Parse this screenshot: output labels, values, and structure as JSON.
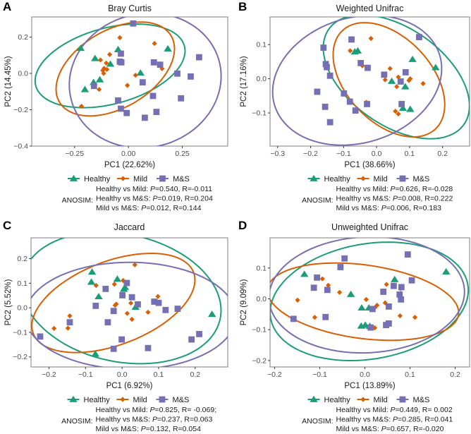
{
  "colors": {
    "Healthy": "#1b9e77",
    "Mild": "#d95f02",
    "M&S": "#7570b3"
  },
  "legend": [
    {
      "name": "Healthy",
      "shape": "triangle"
    },
    {
      "name": "Mild",
      "shape": "diamond"
    },
    {
      "name": "M&S",
      "shape": "square"
    }
  ],
  "anosim_label": "ANOSIM:",
  "chart_data": [
    {
      "panel": "A",
      "type": "scatter",
      "title": "Bray Curtis",
      "xlabel": "PC1 (22.62%)",
      "ylabel": "PC2 (14.45%)",
      "xlim": [
        -0.449,
        0.461
      ],
      "ylim": [
        -0.4,
        0.311
      ],
      "xticks": [
        -0.25,
        0,
        0.25
      ],
      "xtick_labels": [
        "-0.25",
        "0.00",
        "0.25"
      ],
      "yticks": [
        -0.4,
        -0.2,
        0,
        0.2
      ],
      "ytick_labels": [
        "-0.4",
        "-0.2",
        "0.0",
        "0.2"
      ],
      "ellipses": true,
      "series": [
        {
          "name": "Healthy",
          "points": [
            [
              -0.222,
              0.139
            ],
            [
              -0.155,
              0.083
            ],
            [
              -0.048,
              0.132
            ],
            [
              -0.084,
              0.052
            ],
            [
              0.056,
              0.003
            ],
            [
              -0.133,
              -0.034
            ],
            [
              -0.162,
              -0.049
            ],
            [
              -0.202,
              -0.088
            ],
            [
              0.183,
              0.136
            ]
          ]
        },
        {
          "name": "Mild",
          "points": [
            [
              -0.04,
              0.197
            ],
            [
              0.121,
              0.165
            ],
            [
              -0.087,
              0.104
            ],
            [
              -0.13,
              0.074
            ],
            [
              -0.103,
              0.057
            ],
            [
              -0.113,
              0.028
            ],
            [
              -0.1,
              0.022
            ],
            [
              -0.119,
              0.016
            ],
            [
              -0.115,
              0.0
            ],
            [
              0.033,
              -0.01
            ],
            [
              0.156,
              0.026
            ],
            [
              -0.005,
              -0.066
            ],
            [
              -0.136,
              -0.088
            ],
            [
              -0.218,
              -0.181
            ]
          ]
        },
        {
          "name": "M&S",
          "points": [
            [
              0.022,
              0.275
            ],
            [
              -0.035,
              0.109
            ],
            [
              -0.04,
              0.065
            ],
            [
              -0.033,
              0.061
            ],
            [
              0.118,
              0.061
            ],
            [
              0.147,
              0.048
            ],
            [
              0.328,
              0.089
            ],
            [
              0.227,
              -0.001
            ],
            [
              0.289,
              -0.017
            ],
            [
              0.066,
              -0.049
            ],
            [
              -0.16,
              -0.069
            ],
            [
              0.114,
              -0.124
            ],
            [
              0.244,
              -0.137
            ],
            [
              -0.048,
              -0.149
            ],
            [
              -0.035,
              -0.194
            ],
            [
              -0.008,
              -0.218
            ],
            [
              0.076,
              -0.244
            ],
            [
              0.13,
              -0.212
            ]
          ]
        }
      ],
      "anosim": [
        "Healthy vs Mild: P=0.540, R=-0.011",
        "Healthy vs M&S: P=0.019, R=0.204",
        "Mild vs M&S: P=0.012, R=0.144"
      ]
    },
    {
      "panel": "B",
      "type": "scatter",
      "title": "Weighted Unifrac",
      "xlabel": "PC1 (38.66%)",
      "ylabel": "PC2 (17.16%)",
      "xlim": [
        -0.323,
        0.282
      ],
      "ylim": [
        -0.197,
        0.181
      ],
      "xticks": [
        -0.3,
        -0.2,
        -0.1,
        0,
        0.1,
        0.2
      ],
      "xtick_labels": [
        "-0.3",
        "-0.2",
        "-0.1",
        "0.0",
        "0.1",
        "0.2"
      ],
      "yticks": [
        -0.1,
        0,
        0.1
      ],
      "ytick_labels": [
        "-0.1",
        "0.0",
        "0.1"
      ],
      "ellipses": true,
      "series": [
        {
          "name": "Healthy",
          "points": [
            [
              -0.066,
              0.079
            ],
            [
              -0.057,
              0.082
            ],
            [
              0.109,
              0.057
            ],
            [
              0.179,
              0.033
            ],
            [
              0.046,
              -0.007
            ],
            [
              0.087,
              -0.023
            ],
            [
              0.08,
              -0.086
            ],
            [
              0.102,
              -0.089
            ]
          ]
        },
        {
          "name": "Mild",
          "points": [
            [
              -0.017,
              0.118
            ],
            [
              -0.08,
              0.082
            ],
            [
              -0.043,
              0.038
            ],
            [
              0.041,
              0.03
            ],
            [
              0.066,
              0.005
            ],
            [
              0.026,
              -0.003
            ],
            [
              0.102,
              0.0
            ],
            [
              0.098,
              -0.005
            ],
            [
              0.141,
              -0.014
            ],
            [
              0.061,
              -0.023
            ],
            [
              -0.031,
              -0.069
            ],
            [
              0.057,
              -0.095
            ],
            [
              0.066,
              -0.103
            ]
          ]
        },
        {
          "name": "M&S",
          "points": [
            [
              -0.076,
              0.115
            ],
            [
              -0.161,
              0.091
            ],
            [
              0.129,
              0.122
            ],
            [
              -0.154,
              0.043
            ],
            [
              -0.151,
              0.034
            ],
            [
              -0.141,
              0.009
            ],
            [
              -0.048,
              0.046
            ],
            [
              -0.027,
              0.032
            ],
            [
              0.023,
              0.012
            ],
            [
              0.088,
              0.019
            ],
            [
              0.073,
              -0.008
            ],
            [
              -0.18,
              -0.038
            ],
            [
              -0.099,
              -0.043
            ],
            [
              -0.081,
              -0.067
            ],
            [
              -0.029,
              -0.074
            ],
            [
              -0.064,
              -0.093
            ],
            [
              -0.156,
              -0.082
            ],
            [
              -0.141,
              -0.127
            ],
            [
              0.076,
              -0.074
            ]
          ]
        }
      ],
      "anosim": [
        "Healthy vs Mild: P=0.626, R=-0.028",
        "Healthy vs M&S: P=0.008, R=0.222",
        "Mild vs M&S: P=0.006, R=0.183"
      ]
    },
    {
      "panel": "C",
      "type": "scatter",
      "title": "Jaccard",
      "xlabel": "PC1 (6.92%)",
      "ylabel": "PC2 (5.52%)",
      "xlim": [
        -0.249,
        0.289
      ],
      "ylim": [
        -0.241,
        0.285
      ],
      "xticks": [
        -0.2,
        -0.1,
        0,
        0.1,
        0.2
      ],
      "xtick_labels": [
        "-0.2",
        "-0.1",
        "0.0",
        "0.1",
        "0.2"
      ],
      "yticks": [
        -0.2,
        -0.1,
        0,
        0.1,
        0.2
      ],
      "ytick_labels": [
        "-0.2",
        "-0.1",
        "0.0",
        "0.1",
        "0.2"
      ],
      "ellipses": true,
      "series": [
        {
          "name": "Healthy",
          "points": [
            [
              -0.082,
              0.146
            ],
            [
              -0.084,
              0.105
            ],
            [
              -0.064,
              0.046
            ],
            [
              -0.013,
              0.117
            ],
            [
              0.008,
              0.084
            ],
            [
              0.005,
              0.076
            ],
            [
              0.037,
              0.003
            ],
            [
              0.246,
              -0.026
            ],
            [
              -0.073,
              -0.188
            ]
          ]
        },
        {
          "name": "Mild",
          "points": [
            [
              0.035,
              0.175
            ],
            [
              0.003,
              0.111
            ],
            [
              -0.021,
              0.096
            ],
            [
              -0.071,
              0.091
            ],
            [
              0.098,
              0.046
            ],
            [
              -0.016,
              0.015
            ],
            [
              -0.019,
              0.01
            ],
            [
              0.024,
              0.019
            ],
            [
              0.071,
              -0.018
            ],
            [
              0.014,
              -0.023
            ],
            [
              0.027,
              -0.047
            ],
            [
              -0.143,
              -0.033
            ],
            [
              -0.148,
              -0.083
            ],
            [
              -0.186,
              -0.084
            ]
          ]
        },
        {
          "name": "M&S",
          "points": [
            [
              0.013,
              0.101
            ],
            [
              -0.045,
              0.077
            ],
            [
              0.001,
              0.051
            ],
            [
              0.027,
              0.043
            ],
            [
              0.043,
              0.014
            ],
            [
              0.088,
              0.025
            ],
            [
              0.1,
              0.02
            ],
            [
              0.119,
              -0.009
            ],
            [
              0.152,
              -0.004
            ],
            [
              -0.072,
              0.008
            ],
            [
              -0.023,
              -0.013
            ],
            [
              -0.039,
              -0.059
            ],
            [
              -0.143,
              -0.059
            ],
            [
              -0.224,
              -0.117
            ],
            [
              -0.001,
              -0.129
            ],
            [
              -0.023,
              -0.167
            ],
            [
              0.071,
              -0.164
            ],
            [
              0.19,
              -0.129
            ],
            [
              0.211,
              -0.107
            ]
          ]
        }
      ],
      "anosim": [
        "Healthy vs Mild: P=0.825, R= -0.069;",
        "Healthy vs M&S: P=0.237, R=0.063",
        "Mild vs M&S: P=0.132, R=0.054"
      ]
    },
    {
      "panel": "D",
      "type": "scatter",
      "title": "Unweighted Unifrac",
      "xlabel": "PC1 (13.89%)",
      "ylabel": "PC2 (9.09%)",
      "xlim": [
        -0.21,
        0.232
      ],
      "ylim": [
        -0.221,
        0.198
      ],
      "xticks": [
        -0.2,
        -0.1,
        0,
        0.1,
        0.2
      ],
      "xtick_labels": [
        "-0.2",
        "-0.1",
        "0.0",
        "0.1",
        "0.2"
      ],
      "yticks": [
        -0.2,
        -0.1,
        0,
        0.1
      ],
      "ytick_labels": [
        "-0.2",
        "-0.1",
        "0.0",
        "0.1"
      ],
      "ellipses": true,
      "series": [
        {
          "name": "Healthy",
          "points": [
            [
              -0.134,
              0.08
            ],
            [
              -0.031,
              0.015
            ],
            [
              0.066,
              0.063
            ],
            [
              0.18,
              0.088
            ],
            [
              -0.007,
              -0.029
            ],
            [
              0.009,
              -0.029
            ],
            [
              -0.008,
              -0.088
            ],
            [
              0.001,
              -0.085
            ],
            [
              0.011,
              -0.089
            ]
          ]
        },
        {
          "name": "Mild",
          "points": [
            [
              -0.094,
              0.065
            ],
            [
              -0.081,
              0.044
            ],
            [
              -0.056,
              0.021
            ],
            [
              -0.149,
              -0.004
            ],
            [
              0.003,
              -0.002
            ],
            [
              0.048,
              0.047
            ],
            [
              0.045,
              -0.013
            ],
            [
              0.027,
              -0.021
            ],
            [
              0.022,
              -0.029
            ],
            [
              0.079,
              0.033
            ],
            [
              0.078,
              -0.055
            ],
            [
              0.111,
              -0.06
            ],
            [
              -0.111,
              -0.06
            ],
            [
              0.022,
              -0.094
            ]
          ]
        },
        {
          "name": "M&S",
          "points": [
            [
              -0.045,
              0.131
            ],
            [
              -0.054,
              0.103
            ],
            [
              -0.106,
              0.069
            ],
            [
              -0.113,
              0.036
            ],
            [
              -0.083,
              0.029
            ],
            [
              0.095,
              0.144
            ],
            [
              0.104,
              0.06
            ],
            [
              0.064,
              0.042
            ],
            [
              0.081,
              0.038
            ],
            [
              0.041,
              0.023
            ],
            [
              0.077,
              0.014
            ],
            [
              0.08,
              -0.002
            ],
            [
              0.053,
              -0.025
            ],
            [
              0.017,
              -0.033
            ],
            [
              -0.158,
              -0.065
            ],
            [
              -0.087,
              -0.059
            ],
            [
              0.013,
              -0.093
            ],
            [
              0.053,
              -0.08
            ],
            [
              0.047,
              -0.085
            ]
          ]
        }
      ],
      "anosim": [
        "Healthy vs Mild: P=0.449, R= 0.002",
        "Healthy vs M&S: P=0.285, R=0.041",
        "Mild vs M&S: P=0.657, R=-0.020"
      ]
    }
  ]
}
